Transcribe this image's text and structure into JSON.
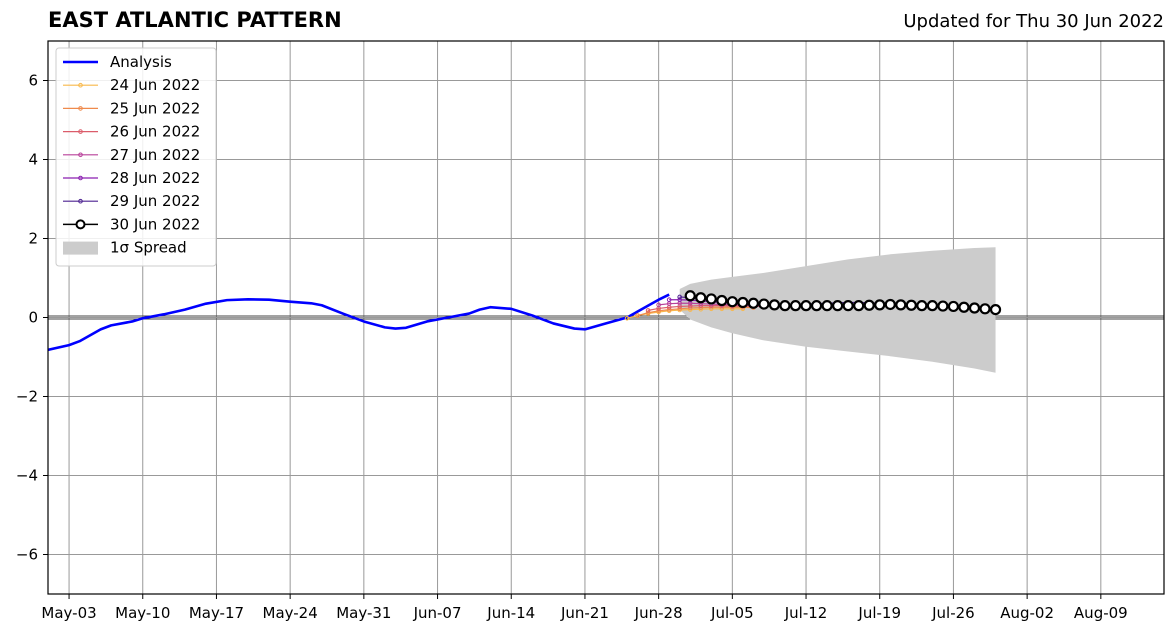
{
  "chart_data": {
    "type": "line",
    "title": "EAST ATLANTIC PATTERN",
    "subtitle": "Updated for Thu 30 Jun 2022",
    "xlabel": "",
    "ylabel": "",
    "x_range": [
      "2022-05-01",
      "2022-08-15"
    ],
    "ylim": [
      -7,
      7
    ],
    "grid": true,
    "legend_placement": "top-left",
    "x_tick_labels": [
      "May-03",
      "May-10",
      "May-17",
      "May-24",
      "May-31",
      "Jun-07",
      "Jun-14",
      "Jun-21",
      "Jun-28",
      "Jul-05",
      "Jul-12",
      "Jul-19",
      "Jul-26",
      "Aug-02",
      "Aug-09"
    ],
    "x_tick_dates": [
      "2022-05-03",
      "2022-05-10",
      "2022-05-17",
      "2022-05-24",
      "2022-05-31",
      "2022-06-07",
      "2022-06-14",
      "2022-06-21",
      "2022-06-28",
      "2022-07-05",
      "2022-07-12",
      "2022-07-19",
      "2022-07-26",
      "2022-08-02",
      "2022-08-09"
    ],
    "y_ticks": [
      -6,
      -4,
      -2,
      0,
      2,
      4,
      6
    ],
    "y_tick_labels": [
      "−6",
      "−4",
      "−2",
      "0",
      "2",
      "4",
      "6"
    ],
    "colors": {
      "analysis": "#0000ff",
      "f24": "#f8b84a",
      "f25": "#ef8a4c",
      "f26": "#db5c6a",
      "f27": "#b8409a",
      "f28": "#8a1fb0",
      "f29": "#4c2190",
      "f30": "#000000",
      "spread": "#cccccc"
    },
    "analysis": {
      "name": "Analysis",
      "x": [
        "2022-05-01",
        "2022-05-03",
        "2022-05-04",
        "2022-05-06",
        "2022-05-07",
        "2022-05-09",
        "2022-05-10",
        "2022-05-12",
        "2022-05-14",
        "2022-05-16",
        "2022-05-18",
        "2022-05-20",
        "2022-05-22",
        "2022-05-24",
        "2022-05-26",
        "2022-05-27",
        "2022-05-29",
        "2022-05-31",
        "2022-06-02",
        "2022-06-03",
        "2022-06-04",
        "2022-06-06",
        "2022-06-08",
        "2022-06-10",
        "2022-06-11",
        "2022-06-12",
        "2022-06-14",
        "2022-06-16",
        "2022-06-18",
        "2022-06-20",
        "2022-06-21",
        "2022-06-23",
        "2022-06-25",
        "2022-06-27",
        "2022-06-28",
        "2022-06-29"
      ],
      "values": [
        -0.82,
        -0.7,
        -0.6,
        -0.3,
        -0.2,
        -0.1,
        -0.02,
        0.08,
        0.2,
        0.35,
        0.44,
        0.46,
        0.45,
        0.4,
        0.36,
        0.31,
        0.1,
        -0.1,
        -0.25,
        -0.28,
        -0.26,
        -0.1,
        0.0,
        0.1,
        0.2,
        0.26,
        0.22,
        0.05,
        -0.15,
        -0.28,
        -0.3,
        -0.15,
        0.0,
        0.3,
        0.45,
        0.58
      ]
    },
    "forecasts": [
      {
        "name": "24 Jun 2022",
        "color_key": "f24",
        "x": [
          "2022-06-25",
          "2022-06-26",
          "2022-06-27",
          "2022-06-28",
          "2022-06-29",
          "2022-06-30",
          "2022-07-01",
          "2022-07-02",
          "2022-07-03",
          "2022-07-04",
          "2022-07-05",
          "2022-07-06"
        ],
        "values": [
          -0.02,
          0.05,
          0.1,
          0.14,
          0.17,
          0.19,
          0.2,
          0.21,
          0.22,
          0.22,
          0.22,
          0.22
        ]
      },
      {
        "name": "25 Jun 2022",
        "color_key": "f25",
        "x": [
          "2022-06-26",
          "2022-06-27",
          "2022-06-28",
          "2022-06-29",
          "2022-06-30",
          "2022-07-01",
          "2022-07-02",
          "2022-07-03",
          "2022-07-04",
          "2022-07-05",
          "2022-07-06",
          "2022-07-07"
        ],
        "values": [
          0.05,
          0.12,
          0.17,
          0.2,
          0.22,
          0.24,
          0.25,
          0.26,
          0.26,
          0.26,
          0.26,
          0.25
        ]
      },
      {
        "name": "26 Jun 2022",
        "color_key": "f26",
        "x": [
          "2022-06-27",
          "2022-06-28",
          "2022-06-29",
          "2022-06-30",
          "2022-07-01",
          "2022-07-02",
          "2022-07-03",
          "2022-07-04",
          "2022-07-05",
          "2022-07-06",
          "2022-07-07",
          "2022-07-08"
        ],
        "values": [
          0.18,
          0.23,
          0.26,
          0.28,
          0.29,
          0.3,
          0.3,
          0.3,
          0.29,
          0.29,
          0.28,
          0.28
        ]
      },
      {
        "name": "27 Jun 2022",
        "color_key": "f27",
        "x": [
          "2022-06-28",
          "2022-06-29",
          "2022-06-30",
          "2022-07-01",
          "2022-07-02",
          "2022-07-03",
          "2022-07-04",
          "2022-07-05",
          "2022-07-06",
          "2022-07-07",
          "2022-07-08",
          "2022-07-09"
        ],
        "values": [
          0.32,
          0.35,
          0.36,
          0.36,
          0.35,
          0.34,
          0.33,
          0.32,
          0.31,
          0.3,
          0.3,
          0.29
        ]
      },
      {
        "name": "28 Jun 2022",
        "color_key": "f28",
        "x": [
          "2022-06-29",
          "2022-06-30",
          "2022-07-01",
          "2022-07-02",
          "2022-07-03",
          "2022-07-04",
          "2022-07-05",
          "2022-07-06",
          "2022-07-07",
          "2022-07-08",
          "2022-07-09",
          "2022-07-10"
        ],
        "values": [
          0.45,
          0.45,
          0.44,
          0.42,
          0.4,
          0.38,
          0.36,
          0.35,
          0.34,
          0.33,
          0.32,
          0.31
        ]
      },
      {
        "name": "29 Jun 2022",
        "color_key": "f29",
        "x": [
          "2022-06-30",
          "2022-07-01",
          "2022-07-02",
          "2022-07-03",
          "2022-07-04",
          "2022-07-05",
          "2022-07-06",
          "2022-07-07",
          "2022-07-08",
          "2022-07-09",
          "2022-07-10",
          "2022-07-11",
          "2022-07-12",
          "2022-07-13",
          "2022-07-14",
          "2022-07-15",
          "2022-07-16",
          "2022-07-17",
          "2022-07-18",
          "2022-07-19",
          "2022-07-20",
          "2022-07-21",
          "2022-07-22",
          "2022-07-23",
          "2022-07-24"
        ],
        "values": [
          0.52,
          0.5,
          0.47,
          0.44,
          0.41,
          0.38,
          0.36,
          0.34,
          0.33,
          0.32,
          0.32,
          0.33,
          0.34,
          0.35,
          0.36,
          0.37,
          0.38,
          0.38,
          0.37,
          0.36,
          0.36,
          0.35,
          0.34,
          0.34,
          0.33
        ]
      },
      {
        "name": "30 Jun 2022",
        "color_key": "f30",
        "x": [
          "2022-07-01",
          "2022-07-02",
          "2022-07-03",
          "2022-07-04",
          "2022-07-05",
          "2022-07-06",
          "2022-07-07",
          "2022-07-08",
          "2022-07-09",
          "2022-07-10",
          "2022-07-11",
          "2022-07-12",
          "2022-07-13",
          "2022-07-14",
          "2022-07-15",
          "2022-07-16",
          "2022-07-17",
          "2022-07-18",
          "2022-07-19",
          "2022-07-20",
          "2022-07-21",
          "2022-07-22",
          "2022-07-23",
          "2022-07-24",
          "2022-07-25",
          "2022-07-26",
          "2022-07-27",
          "2022-07-28",
          "2022-07-29",
          "2022-07-30"
        ],
        "values": [
          0.55,
          0.5,
          0.47,
          0.43,
          0.4,
          0.38,
          0.36,
          0.34,
          0.32,
          0.3,
          0.3,
          0.3,
          0.3,
          0.3,
          0.3,
          0.3,
          0.3,
          0.31,
          0.32,
          0.33,
          0.32,
          0.31,
          0.3,
          0.3,
          0.29,
          0.28,
          0.26,
          0.24,
          0.22,
          0.2
        ]
      }
    ],
    "spread": {
      "name": "1σ Spread",
      "x": [
        "2022-06-30",
        "2022-07-01",
        "2022-07-03",
        "2022-07-05",
        "2022-07-08",
        "2022-07-12",
        "2022-07-16",
        "2022-07-20",
        "2022-07-24",
        "2022-07-28",
        "2022-07-30"
      ],
      "upper": [
        0.72,
        0.85,
        0.96,
        1.03,
        1.13,
        1.3,
        1.47,
        1.6,
        1.69,
        1.76,
        1.78
      ],
      "lower": [
        0.2,
        -0.05,
        -0.25,
        -0.4,
        -0.58,
        -0.74,
        -0.86,
        -0.98,
        -1.12,
        -1.29,
        -1.4
      ]
    }
  }
}
